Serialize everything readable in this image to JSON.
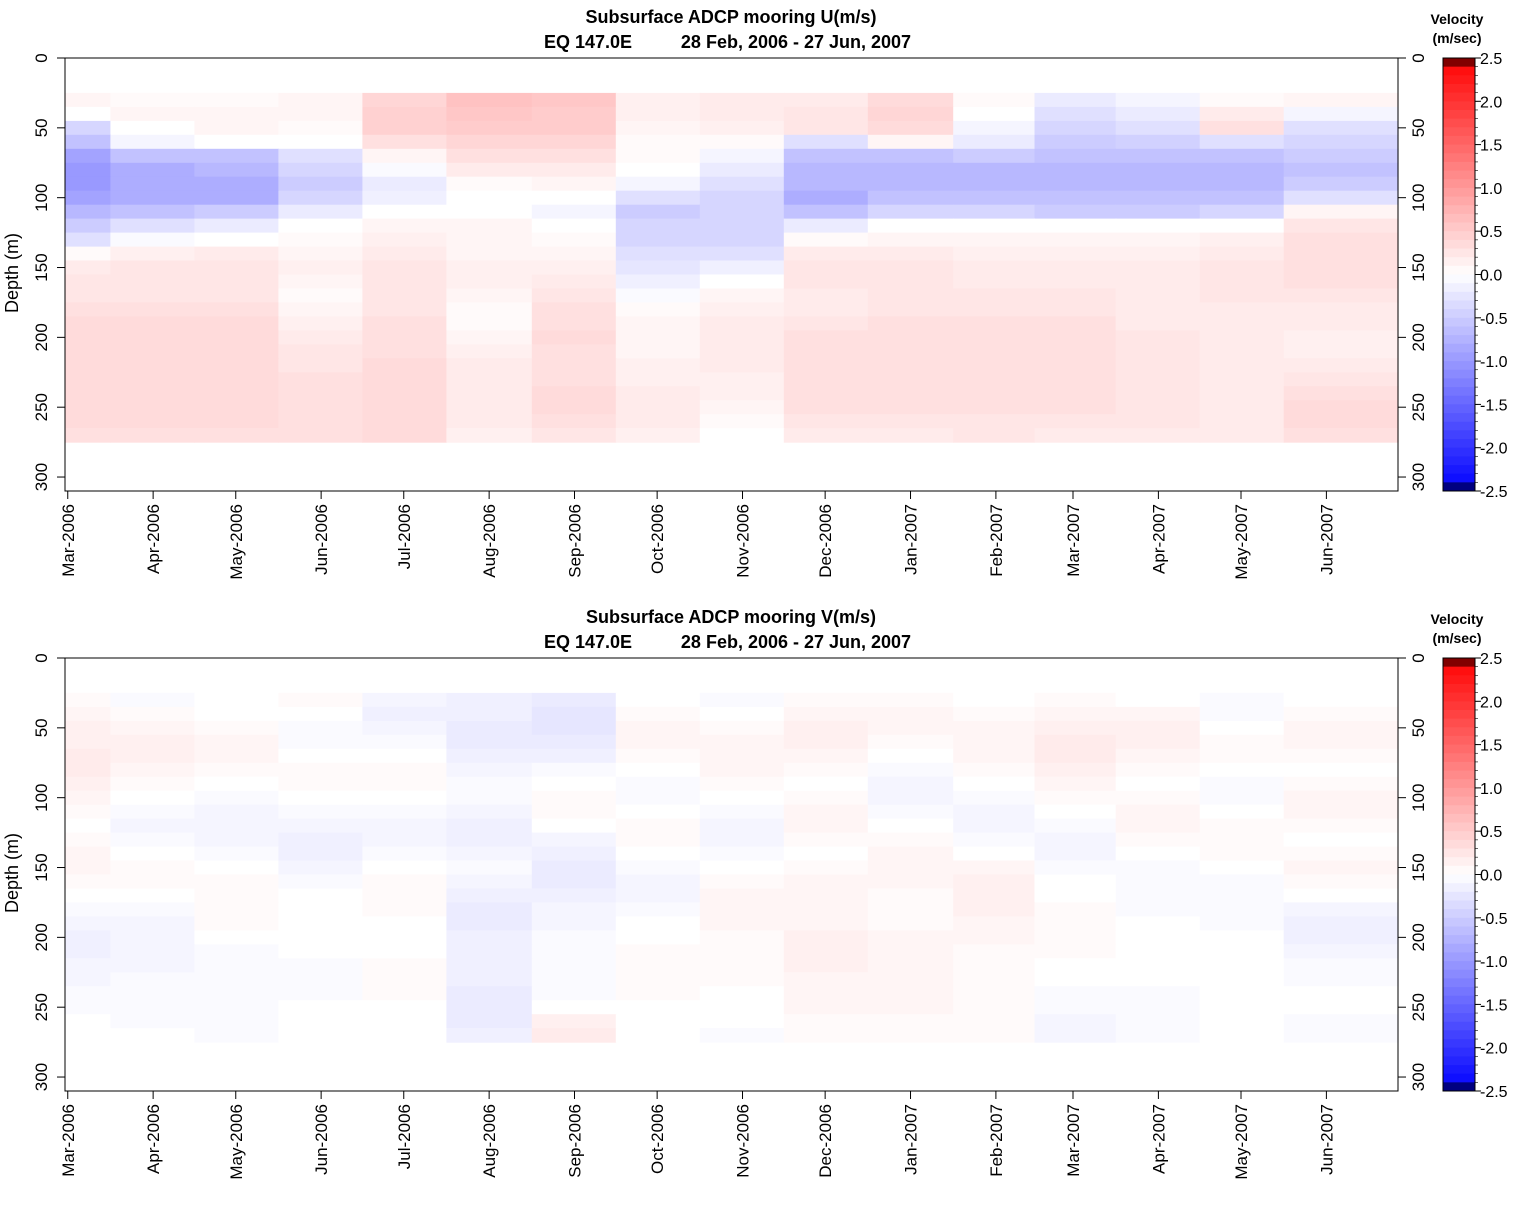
{
  "chart_data": [
    {
      "type": "heatmap",
      "title": "Subsurface ADCP mooring U(m/s)",
      "subtitle_location": "EQ 147.0E",
      "subtitle_dates": "28 Feb, 2006 - 27 Jun, 2007",
      "ylabel": "Depth (m)",
      "xlabel": "",
      "x_categories": [
        "Mar-2006",
        "Apr-2006",
        "May-2006",
        "Jun-2006",
        "Jul-2006",
        "Aug-2006",
        "Sep-2006",
        "Oct-2006",
        "Nov-2006",
        "Dec-2006",
        "Jan-2007",
        "Feb-2007",
        "Mar-2007",
        "Apr-2007",
        "May-2007",
        "Jun-2007"
      ],
      "x_range": [
        "2006-02-28",
        "2007-06-27"
      ],
      "ylim": [
        0,
        310
      ],
      "y_ticks": [
        "0",
        "50",
        "100",
        "150",
        "200",
        "250",
        "300"
      ],
      "y_inverted": true,
      "colorbar": {
        "title_line1": "Velocity",
        "title_line2": "(m/sec)",
        "range": [
          -2.5,
          2.5
        ],
        "tick_labels": [
          "2.5",
          "2.0",
          "1.5",
          "1.0",
          "0.5",
          "0.0",
          "-0.5",
          "-1.0",
          "-1.5",
          "-2.0",
          "-2.5"
        ]
      },
      "time_axis": [
        "2006-03-01",
        "2006-04-01",
        "2006-05-01",
        "2006-06-01",
        "2006-07-01",
        "2006-08-01",
        "2006-09-01",
        "2006-10-01",
        "2006-11-01",
        "2006-12-01",
        "2007-01-01",
        "2007-02-01",
        "2007-03-01",
        "2007-04-01",
        "2007-05-01",
        "2007-06-01"
      ],
      "depth_axis": [
        30,
        40,
        50,
        60,
        70,
        80,
        90,
        100,
        110,
        120,
        130,
        140,
        150,
        160,
        170,
        180,
        190,
        200,
        210,
        220,
        230,
        240,
        250,
        260,
        270
      ],
      "values": [
        [
          0.1,
          0.05,
          0.05,
          0.1,
          0.4,
          0.6,
          0.55,
          0.15,
          0.2,
          0.2,
          0.35,
          0.05,
          -0.2,
          -0.1,
          0.05,
          0.1
        ],
        [
          0.0,
          0.1,
          0.1,
          0.1,
          0.45,
          0.55,
          0.5,
          0.15,
          0.2,
          0.25,
          0.4,
          0.0,
          -0.3,
          -0.2,
          0.2,
          -0.1
        ],
        [
          -0.4,
          0.0,
          0.1,
          0.05,
          0.45,
          0.5,
          0.5,
          0.1,
          0.15,
          0.25,
          0.35,
          -0.1,
          -0.4,
          -0.3,
          0.3,
          -0.3
        ],
        [
          -0.6,
          -0.1,
          0.0,
          0.0,
          0.3,
          0.4,
          0.4,
          0.05,
          0.05,
          -0.3,
          0.1,
          -0.2,
          -0.5,
          -0.45,
          -0.3,
          -0.4
        ],
        [
          -0.9,
          -0.6,
          -0.6,
          -0.3,
          0.1,
          0.3,
          0.3,
          0.05,
          -0.1,
          -0.6,
          -0.6,
          -0.5,
          -0.6,
          -0.6,
          -0.6,
          -0.5
        ],
        [
          -1.0,
          -0.8,
          -0.7,
          -0.4,
          -0.05,
          0.2,
          0.2,
          0.0,
          -0.2,
          -0.7,
          -0.7,
          -0.7,
          -0.7,
          -0.7,
          -0.7,
          -0.6
        ],
        [
          -1.0,
          -0.8,
          -0.8,
          -0.5,
          -0.2,
          0.05,
          0.1,
          -0.1,
          -0.3,
          -0.7,
          -0.7,
          -0.7,
          -0.7,
          -0.7,
          -0.7,
          -0.5
        ],
        [
          -0.9,
          -0.8,
          -0.8,
          -0.4,
          -0.15,
          0.0,
          0.0,
          -0.3,
          -0.4,
          -0.8,
          -0.6,
          -0.6,
          -0.6,
          -0.6,
          -0.6,
          -0.3
        ],
        [
          -0.7,
          -0.6,
          -0.5,
          -0.2,
          0.0,
          0.0,
          -0.1,
          -0.5,
          -0.4,
          -0.6,
          -0.4,
          -0.4,
          -0.5,
          -0.5,
          -0.4,
          0.1
        ],
        [
          -0.5,
          -0.3,
          -0.2,
          0.0,
          0.1,
          0.1,
          0.0,
          -0.4,
          -0.4,
          -0.2,
          0.0,
          0.0,
          0.0,
          0.0,
          0.0,
          0.25
        ],
        [
          -0.3,
          -0.05,
          0.0,
          0.05,
          0.15,
          0.1,
          0.05,
          -0.4,
          -0.4,
          0.05,
          0.1,
          0.1,
          0.1,
          0.1,
          0.15,
          0.3
        ],
        [
          0.05,
          0.15,
          0.2,
          0.1,
          0.2,
          0.1,
          0.1,
          -0.3,
          -0.3,
          0.2,
          0.2,
          0.15,
          0.15,
          0.15,
          0.2,
          0.3
        ],
        [
          0.2,
          0.25,
          0.25,
          0.15,
          0.25,
          0.15,
          0.15,
          -0.25,
          -0.15,
          0.25,
          0.25,
          0.2,
          0.2,
          0.2,
          0.25,
          0.3
        ],
        [
          0.25,
          0.25,
          0.25,
          0.1,
          0.25,
          0.15,
          0.2,
          -0.15,
          0.0,
          0.25,
          0.25,
          0.2,
          0.2,
          0.2,
          0.25,
          0.3
        ],
        [
          0.25,
          0.25,
          0.25,
          0.05,
          0.25,
          0.1,
          0.25,
          -0.05,
          0.1,
          0.2,
          0.25,
          0.25,
          0.25,
          0.2,
          0.25,
          0.25
        ],
        [
          0.3,
          0.3,
          0.3,
          0.1,
          0.25,
          0.05,
          0.3,
          0.05,
          0.15,
          0.2,
          0.25,
          0.25,
          0.25,
          0.2,
          0.2,
          0.2
        ],
        [
          0.35,
          0.35,
          0.35,
          0.15,
          0.3,
          0.05,
          0.3,
          0.1,
          0.2,
          0.25,
          0.3,
          0.3,
          0.3,
          0.2,
          0.2,
          0.2
        ],
        [
          0.35,
          0.35,
          0.35,
          0.2,
          0.3,
          0.1,
          0.35,
          0.1,
          0.2,
          0.3,
          0.3,
          0.3,
          0.3,
          0.25,
          0.2,
          0.15
        ],
        [
          0.35,
          0.35,
          0.35,
          0.25,
          0.3,
          0.15,
          0.3,
          0.1,
          0.2,
          0.3,
          0.3,
          0.3,
          0.3,
          0.25,
          0.2,
          0.15
        ],
        [
          0.35,
          0.35,
          0.35,
          0.25,
          0.35,
          0.2,
          0.3,
          0.15,
          0.2,
          0.3,
          0.3,
          0.3,
          0.3,
          0.25,
          0.2,
          0.2
        ],
        [
          0.35,
          0.35,
          0.35,
          0.3,
          0.35,
          0.2,
          0.3,
          0.15,
          0.15,
          0.3,
          0.3,
          0.3,
          0.3,
          0.25,
          0.2,
          0.25
        ],
        [
          0.35,
          0.35,
          0.35,
          0.3,
          0.35,
          0.2,
          0.35,
          0.2,
          0.15,
          0.3,
          0.3,
          0.3,
          0.3,
          0.25,
          0.2,
          0.3
        ],
        [
          0.35,
          0.35,
          0.35,
          0.3,
          0.35,
          0.2,
          0.35,
          0.2,
          0.1,
          0.3,
          0.3,
          0.3,
          0.3,
          0.25,
          0.2,
          0.35
        ],
        [
          0.35,
          0.35,
          0.35,
          0.3,
          0.35,
          0.2,
          0.3,
          0.2,
          0.05,
          0.25,
          0.25,
          0.25,
          0.25,
          0.25,
          0.2,
          0.35
        ],
        [
          0.3,
          0.3,
          0.3,
          0.3,
          0.35,
          0.15,
          0.25,
          0.15,
          0.0,
          0.2,
          0.2,
          0.25,
          0.2,
          0.2,
          0.2,
          0.3
        ]
      ]
    },
    {
      "type": "heatmap",
      "title": "Subsurface ADCP mooring V(m/s)",
      "subtitle_location": "EQ 147.0E",
      "subtitle_dates": "28 Feb, 2006 - 27 Jun, 2007",
      "ylabel": "Depth (m)",
      "xlabel": "",
      "x_categories": [
        "Mar-2006",
        "Apr-2006",
        "May-2006",
        "Jun-2006",
        "Jul-2006",
        "Aug-2006",
        "Sep-2006",
        "Oct-2006",
        "Nov-2006",
        "Dec-2006",
        "Jan-2007",
        "Feb-2007",
        "Mar-2007",
        "Apr-2007",
        "May-2007",
        "Jun-2007"
      ],
      "x_range": [
        "2006-02-28",
        "2007-06-27"
      ],
      "ylim": [
        0,
        310
      ],
      "y_ticks": [
        "0",
        "50",
        "100",
        "150",
        "200",
        "250",
        "300"
      ],
      "y_inverted": true,
      "colorbar": {
        "title_line1": "Velocity",
        "title_line2": "(m/sec)",
        "range": [
          -2.5,
          2.5
        ],
        "tick_labels": [
          "2.5",
          "2.0",
          "1.5",
          "1.0",
          "0.5",
          "0.0",
          "-0.5",
          "-1.0",
          "-1.5",
          "-2.0",
          "-2.5"
        ]
      },
      "time_axis": [
        "2006-03-01",
        "2006-04-01",
        "2006-05-01",
        "2006-06-01",
        "2006-07-01",
        "2006-08-01",
        "2006-09-01",
        "2006-10-01",
        "2006-11-01",
        "2006-12-01",
        "2007-01-01",
        "2007-02-01",
        "2007-03-01",
        "2007-04-01",
        "2007-05-01",
        "2007-06-01"
      ],
      "depth_axis": [
        30,
        40,
        50,
        60,
        70,
        80,
        90,
        100,
        110,
        120,
        130,
        140,
        150,
        160,
        170,
        180,
        190,
        200,
        210,
        220,
        230,
        240,
        250,
        260,
        270
      ],
      "values": [
        [
          0.05,
          -0.05,
          0.0,
          0.05,
          -0.1,
          -0.15,
          -0.2,
          0.0,
          -0.05,
          0.05,
          0.05,
          0.0,
          0.05,
          0.0,
          -0.05,
          0.0
        ],
        [
          0.1,
          0.05,
          0.0,
          0.0,
          -0.15,
          -0.15,
          -0.25,
          0.05,
          0.0,
          0.1,
          0.1,
          0.05,
          0.1,
          0.1,
          -0.05,
          0.05
        ],
        [
          0.15,
          0.1,
          0.05,
          -0.05,
          -0.1,
          -0.2,
          -0.25,
          0.1,
          0.05,
          0.15,
          0.1,
          0.1,
          0.15,
          0.15,
          0.0,
          0.1
        ],
        [
          0.15,
          0.15,
          0.1,
          -0.05,
          -0.05,
          -0.2,
          -0.2,
          0.1,
          0.1,
          0.15,
          0.05,
          0.1,
          0.2,
          0.15,
          0.05,
          0.1
        ],
        [
          0.2,
          0.15,
          0.1,
          0.0,
          0.0,
          -0.15,
          -0.15,
          0.05,
          0.1,
          0.1,
          0.0,
          0.1,
          0.2,
          0.1,
          0.05,
          0.05
        ],
        [
          0.2,
          0.1,
          0.05,
          0.05,
          0.05,
          -0.1,
          -0.05,
          0.0,
          0.1,
          0.05,
          -0.05,
          0.05,
          0.15,
          0.05,
          0.0,
          0.0
        ],
        [
          0.15,
          0.05,
          0.0,
          0.05,
          0.05,
          -0.05,
          0.0,
          -0.05,
          0.05,
          0.0,
          -0.1,
          0.0,
          0.1,
          0.0,
          -0.05,
          0.05
        ],
        [
          0.1,
          0.0,
          -0.05,
          0.0,
          0.0,
          -0.05,
          0.05,
          -0.05,
          0.0,
          0.05,
          -0.1,
          -0.05,
          0.05,
          0.05,
          -0.05,
          0.1
        ],
        [
          0.05,
          -0.05,
          -0.1,
          -0.05,
          -0.05,
          -0.1,
          0.05,
          0.0,
          -0.05,
          0.1,
          -0.05,
          -0.1,
          0.0,
          0.1,
          0.0,
          0.1
        ],
        [
          0.0,
          -0.1,
          -0.1,
          -0.1,
          -0.1,
          -0.15,
          0.0,
          0.05,
          -0.1,
          0.1,
          0.0,
          -0.1,
          -0.05,
          0.1,
          0.05,
          0.05
        ],
        [
          0.05,
          -0.05,
          -0.1,
          -0.15,
          -0.1,
          -0.15,
          -0.1,
          0.05,
          -0.1,
          0.05,
          0.05,
          -0.05,
          -0.1,
          0.05,
          0.05,
          0.0
        ],
        [
          0.1,
          0.0,
          -0.05,
          -0.15,
          -0.05,
          -0.1,
          -0.15,
          0.0,
          -0.05,
          0.0,
          0.1,
          0.0,
          -0.1,
          0.0,
          0.05,
          0.05
        ],
        [
          0.1,
          0.05,
          0.0,
          -0.1,
          0.0,
          -0.05,
          -0.2,
          -0.05,
          0.0,
          0.05,
          0.1,
          0.1,
          -0.05,
          -0.05,
          0.0,
          0.1
        ],
        [
          0.05,
          0.05,
          0.05,
          -0.05,
          0.05,
          -0.1,
          -0.2,
          -0.1,
          0.05,
          0.1,
          0.1,
          0.15,
          0.0,
          -0.05,
          -0.05,
          0.05
        ],
        [
          0.0,
          0.0,
          0.05,
          0.0,
          0.05,
          -0.15,
          -0.15,
          -0.1,
          0.1,
          0.1,
          0.05,
          0.15,
          0.0,
          -0.05,
          -0.05,
          0.0
        ],
        [
          -0.05,
          -0.05,
          0.05,
          0.0,
          0.05,
          -0.2,
          -0.1,
          -0.05,
          0.1,
          0.1,
          0.05,
          0.15,
          0.05,
          -0.05,
          -0.05,
          -0.1
        ],
        [
          -0.1,
          -0.1,
          0.05,
          0.0,
          0.0,
          -0.2,
          -0.1,
          0.0,
          0.1,
          0.1,
          0.05,
          0.1,
          0.05,
          0.0,
          -0.05,
          -0.15
        ],
        [
          -0.15,
          -0.1,
          0.0,
          0.0,
          0.0,
          -0.15,
          -0.05,
          0.0,
          0.05,
          0.15,
          0.1,
          0.1,
          0.05,
          0.0,
          0.0,
          -0.15
        ],
        [
          -0.15,
          -0.1,
          -0.05,
          0.0,
          0.0,
          -0.15,
          -0.05,
          0.05,
          0.05,
          0.15,
          0.1,
          0.05,
          0.05,
          0.0,
          0.0,
          -0.1
        ],
        [
          -0.1,
          -0.1,
          -0.05,
          -0.05,
          0.05,
          -0.15,
          -0.05,
          0.05,
          0.05,
          0.15,
          0.1,
          0.05,
          0.0,
          0.0,
          0.0,
          -0.05
        ],
        [
          -0.1,
          -0.05,
          -0.05,
          -0.05,
          0.05,
          -0.15,
          -0.05,
          0.05,
          0.05,
          0.1,
          0.1,
          0.05,
          0.0,
          0.0,
          0.0,
          -0.05
        ],
        [
          -0.05,
          -0.05,
          -0.05,
          -0.05,
          0.05,
          -0.2,
          -0.05,
          0.05,
          0.0,
          0.1,
          0.1,
          0.05,
          -0.05,
          -0.05,
          0.0,
          0.0
        ],
        [
          -0.05,
          -0.05,
          -0.05,
          0.0,
          0.0,
          -0.2,
          0.0,
          0.0,
          0.0,
          0.1,
          0.1,
          0.05,
          -0.05,
          -0.05,
          0.0,
          0.0
        ],
        [
          0.0,
          -0.05,
          -0.05,
          0.0,
          0.0,
          -0.2,
          0.15,
          0.0,
          0.0,
          0.05,
          0.05,
          0.05,
          -0.1,
          -0.05,
          0.0,
          -0.05
        ],
        [
          0.0,
          0.0,
          -0.05,
          0.0,
          0.0,
          -0.15,
          0.2,
          0.0,
          -0.05,
          0.05,
          0.05,
          0.05,
          -0.1,
          -0.05,
          0.0,
          -0.05
        ]
      ]
    }
  ]
}
